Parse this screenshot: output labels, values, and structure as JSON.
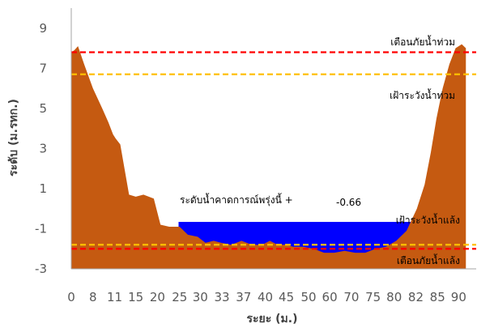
{
  "chart_data": {
    "type": "area",
    "title": "",
    "xlabel": "ระยะ (ม.)",
    "ylabel": "ระดับ (ม.รทก.)",
    "ylim": [
      -3,
      10
    ],
    "y_ticks": [
      "9",
      "7",
      "5",
      "3",
      "1",
      "-1",
      "-3"
    ],
    "y_tick_values": [
      9,
      7,
      5,
      3,
      1,
      -1,
      -3
    ],
    "x_ticks": [
      "0",
      "8",
      "11",
      "15",
      "20",
      "25",
      "30",
      "33",
      "37",
      "40",
      "45",
      "50",
      "60",
      "70",
      "75",
      "80",
      "82",
      "85",
      "90"
    ],
    "x_tick_positions": [
      0,
      4.2,
      8.4,
      12.5,
      16.7,
      21.0,
      25.0,
      29.2,
      33.4,
      37.6,
      41.7,
      46.0,
      50.1,
      54.3,
      58.5,
      62.6,
      66.8,
      71.0,
      75.1
    ],
    "ground_profile": {
      "x": [
        0,
        0.6,
        1.3,
        2.5,
        4.2,
        6.0,
        7.2,
        8.1,
        8.6,
        9.5,
        11.2,
        12.5,
        14.0,
        16.0,
        17.3,
        19.0,
        21.0,
        22.6,
        24.5,
        26.0,
        27.6,
        29.0,
        31.0,
        33.0,
        35.0,
        37.0,
        38.5,
        40.0,
        41.6,
        43.0,
        45.0,
        47.0,
        49.0,
        51.0,
        53.0,
        55.0,
        57.0,
        59.0,
        61.0,
        63.0,
        65.0,
        67.0,
        68.5,
        69.7,
        70.8,
        72.0,
        73.3,
        74.5,
        75.7,
        76.5
      ],
      "y": [
        7.8,
        7.9,
        8.1,
        7.2,
        6.0,
        5.0,
        4.3,
        3.7,
        3.5,
        3.2,
        0.7,
        0.6,
        0.7,
        0.5,
        -0.8,
        -0.9,
        -0.9,
        -1.3,
        -1.4,
        -1.7,
        -1.6,
        -1.7,
        -1.8,
        -1.6,
        -1.8,
        -1.8,
        -1.6,
        -1.8,
        -1.8,
        -1.9,
        -1.9,
        -2.0,
        -2.2,
        -2.2,
        -2.1,
        -2.2,
        -2.2,
        -2.0,
        -1.9,
        -1.6,
        -1.1,
        0.0,
        1.2,
        2.8,
        4.5,
        6.0,
        7.2,
        8.0,
        8.2,
        8.0
      ]
    },
    "forecast_water": {
      "y": -0.66,
      "x_start": 20.8,
      "x_end": 66.0,
      "color": "#0000ff"
    },
    "ground_color": "#c55a11",
    "thresholds": [
      {
        "name": "เตือนภัยน้ำท่วม",
        "y": 7.8,
        "color": "#ff0000"
      },
      {
        "name": "เฝ้าระวังน้ำท่วม",
        "y": 6.7,
        "color": "#ffc000"
      },
      {
        "name": "เฝ้าระวังน้ำแล้ง",
        "y": -1.8,
        "color": "#ffc000"
      },
      {
        "name": "เตือนภัยน้ำแล้ง",
        "y": -2.0,
        "color": "#ff0000"
      }
    ],
    "annotation": {
      "label": "ระดับน้ำคาดการณ์พรุ่งนี้ +",
      "value": "-0.66"
    },
    "grid": false,
    "legend": "none"
  }
}
